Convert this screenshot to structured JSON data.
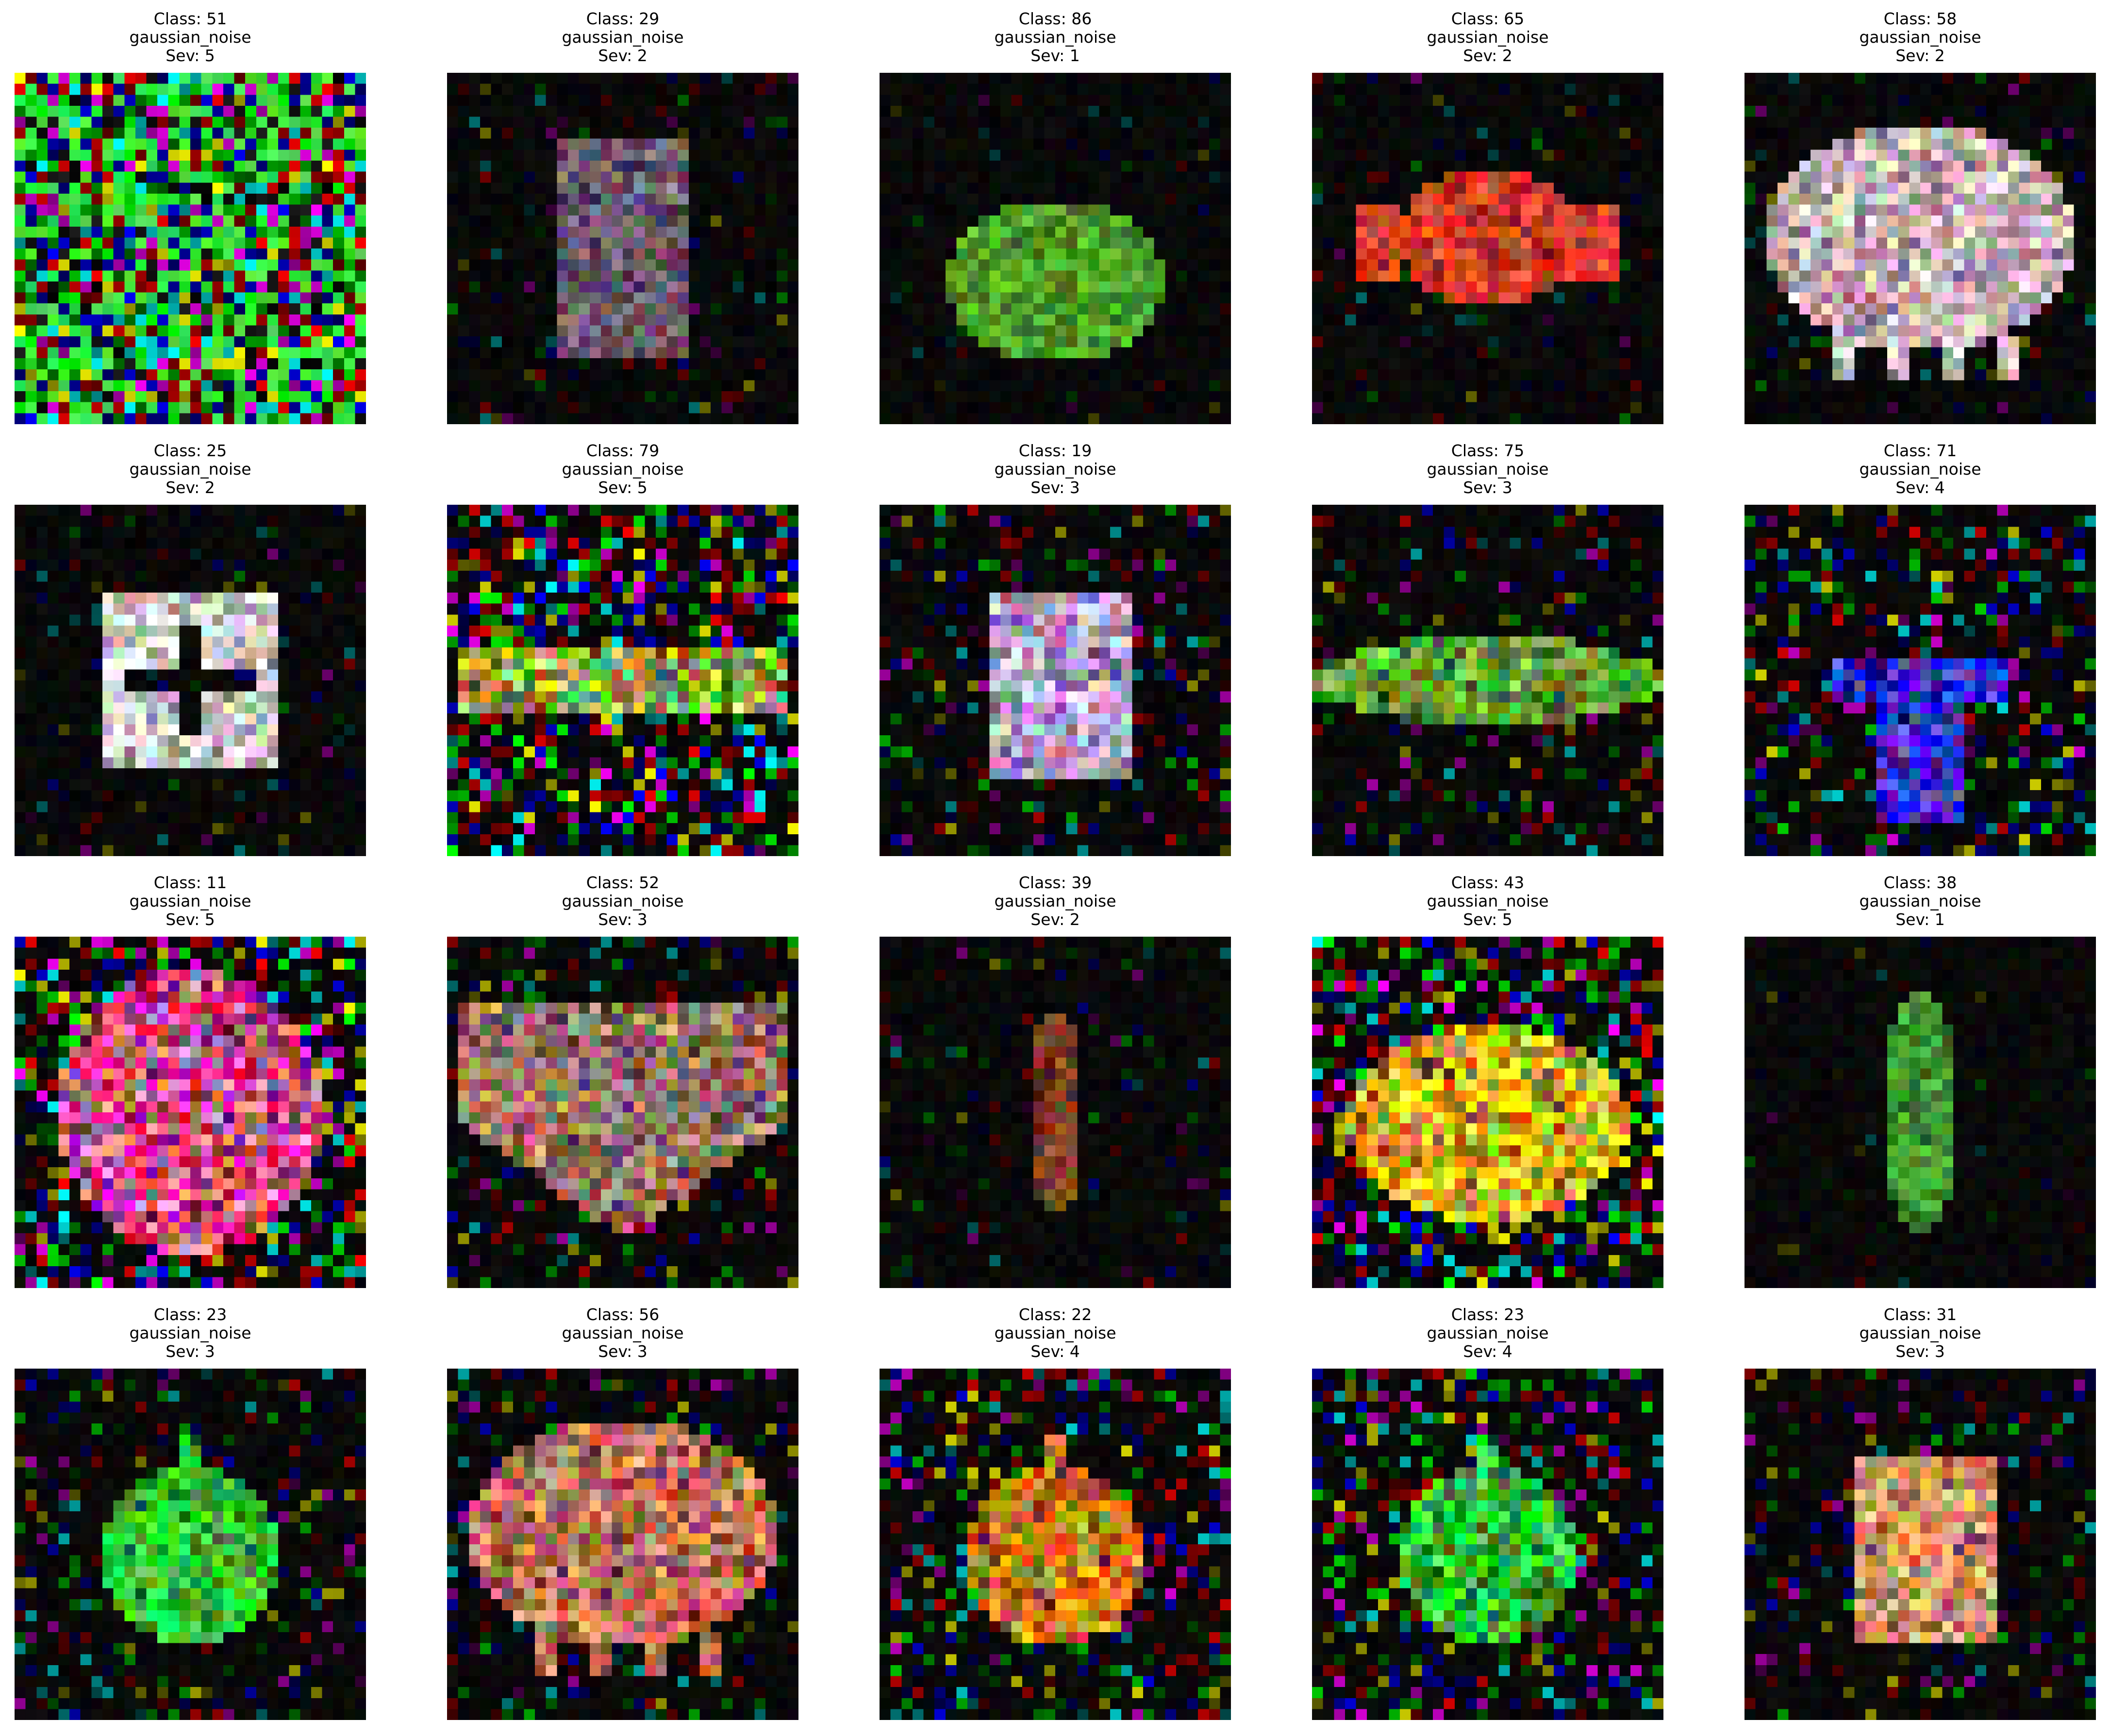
{
  "figure": {
    "panels": [
      {
        "class_label": "Class: 51",
        "corruption": "gaussian_noise",
        "severity_label": "Sev: 5",
        "severity": 5,
        "shape": "full-noise",
        "color": "#18ff30"
      },
      {
        "class_label": "Class: 29",
        "corruption": "gaussian_noise",
        "severity_label": "Sev: 2",
        "severity": 2,
        "shape": "tall-rect",
        "color": "#7f6a7e"
      },
      {
        "class_label": "Class: 86",
        "corruption": "gaussian_noise",
        "severity_label": "Sev: 1",
        "severity": 1,
        "shape": "ellipse",
        "color": "#5cba2f"
      },
      {
        "class_label": "Class: 65",
        "corruption": "gaussian_noise",
        "severity_label": "Sev: 2",
        "severity": 2,
        "shape": "fish",
        "color": "#ff4a2c"
      },
      {
        "class_label": "Class: 58",
        "corruption": "gaussian_noise",
        "severity_label": "Sev: 2",
        "severity": 2,
        "shape": "cloud",
        "color": "#f0d6d8"
      },
      {
        "class_label": "Class: 25",
        "corruption": "gaussian_noise",
        "severity_label": "Sev: 2",
        "severity": 2,
        "shape": "cross-box",
        "color": "#f7f2ef"
      },
      {
        "class_label": "Class: 79",
        "corruption": "gaussian_noise",
        "severity_label": "Sev: 5",
        "severity": 5,
        "shape": "band",
        "color": "#a9c84a"
      },
      {
        "class_label": "Class: 19",
        "corruption": "gaussian_noise",
        "severity_label": "Sev: 3",
        "severity": 3,
        "shape": "rect",
        "color": "#d6c0ee"
      },
      {
        "class_label": "Class: 75",
        "corruption": "gaussian_noise",
        "severity_label": "Sev: 3",
        "severity": 3,
        "shape": "spindle",
        "color": "#6cc23a"
      },
      {
        "class_label": "Class: 71",
        "corruption": "gaussian_noise",
        "severity_label": "Sev: 4",
        "severity": 4,
        "shape": "tee",
        "color": "#3a30ff"
      },
      {
        "class_label": "Class: 11",
        "corruption": "gaussian_noise",
        "severity_label": "Sev: 5",
        "severity": 5,
        "shape": "blob",
        "color": "#ff5aa0"
      },
      {
        "class_label": "Class: 52",
        "corruption": "gaussian_noise",
        "severity_label": "Sev: 3",
        "severity": 3,
        "shape": "heart",
        "color": "#b48a78"
      },
      {
        "class_label": "Class: 39",
        "corruption": "gaussian_noise",
        "severity_label": "Sev: 2",
        "severity": 2,
        "shape": "thin-vertical",
        "color": "#8a4a2a"
      },
      {
        "class_label": "Class: 43",
        "corruption": "gaussian_noise",
        "severity_label": "Sev: 5",
        "severity": 5,
        "shape": "wide-oval",
        "color": "#ffd21a"
      },
      {
        "class_label": "Class: 38",
        "corruption": "gaussian_noise",
        "severity_label": "Sev: 1",
        "severity": 1,
        "shape": "leaf",
        "color": "#4db13a"
      },
      {
        "class_label": "Class: 23",
        "corruption": "gaussian_noise",
        "severity_label": "Sev: 3",
        "severity": 3,
        "shape": "round-stem",
        "color": "#3ee03a"
      },
      {
        "class_label": "Class: 56",
        "corruption": "gaussian_noise",
        "severity_label": "Sev: 3",
        "severity": 3,
        "shape": "cloud",
        "color": "#e2876a"
      },
      {
        "class_label": "Class: 22",
        "corruption": "gaussian_noise",
        "severity_label": "Sev: 4",
        "severity": 4,
        "shape": "round-stem",
        "color": "#ff8a1a"
      },
      {
        "class_label": "Class: 23",
        "corruption": "gaussian_noise",
        "severity_label": "Sev: 4",
        "severity": 4,
        "shape": "round-stem",
        "color": "#2fe03a"
      },
      {
        "class_label": "Class: 31",
        "corruption": "gaussian_noise",
        "severity_label": "Sev: 3",
        "severity": 3,
        "shape": "rect",
        "color": "#ffb07a"
      }
    ]
  }
}
